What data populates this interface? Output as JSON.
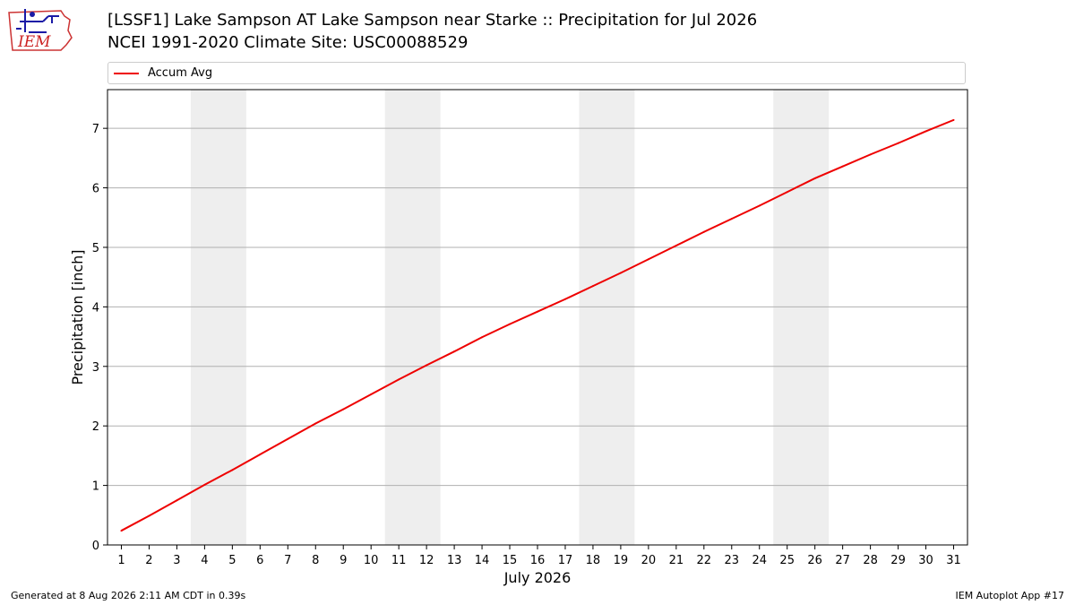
{
  "header": {
    "logo_text": "IEM",
    "title_line1": "[LSSF1] Lake Sampson  AT Lake Sampson near Starke :: Precipitation for Jul 2026",
    "title_line2": "NCEI 1991-2020 Climate Site: USC00088529"
  },
  "footer": {
    "left": "Generated at 8 Aug 2026 2:11 AM CDT in 0.39s",
    "right": "IEM Autoplot App #17"
  },
  "colors": {
    "series": "#ee0000",
    "weekend_band": "#eeeeee",
    "grid": "#b0b0b0"
  },
  "chart_data": {
    "type": "line",
    "xlabel": "July 2026",
    "ylabel": "Precipitation [inch]",
    "xlim": [
      0.5,
      31.5
    ],
    "ylim": [
      0,
      7.65
    ],
    "x_ticks": [
      1,
      2,
      3,
      4,
      5,
      6,
      7,
      8,
      9,
      10,
      11,
      12,
      13,
      14,
      15,
      16,
      17,
      18,
      19,
      20,
      21,
      22,
      23,
      24,
      25,
      26,
      27,
      28,
      29,
      30,
      31
    ],
    "y_ticks": [
      0,
      1,
      2,
      3,
      4,
      5,
      6,
      7
    ],
    "grid": "horizontal",
    "legend_position": "top",
    "shaded_x_ranges": [
      [
        3.5,
        5.5
      ],
      [
        10.5,
        12.5
      ],
      [
        17.5,
        19.5
      ],
      [
        24.5,
        26.5
      ]
    ],
    "series": [
      {
        "name": "Accum Avg",
        "x": [
          1,
          2,
          3,
          4,
          5,
          6,
          7,
          8,
          9,
          10,
          11,
          12,
          13,
          14,
          15,
          16,
          17,
          18,
          19,
          20,
          21,
          22,
          23,
          24,
          25,
          26,
          27,
          28,
          29,
          30,
          31
        ],
        "y": [
          0.24,
          0.49,
          0.75,
          1.01,
          1.26,
          1.52,
          1.78,
          2.04,
          2.28,
          2.53,
          2.78,
          3.02,
          3.25,
          3.49,
          3.71,
          3.92,
          4.13,
          4.35,
          4.57,
          4.8,
          5.03,
          5.26,
          5.48,
          5.7,
          5.93,
          6.16,
          6.36,
          6.56,
          6.75,
          6.95,
          7.14
        ]
      }
    ]
  }
}
